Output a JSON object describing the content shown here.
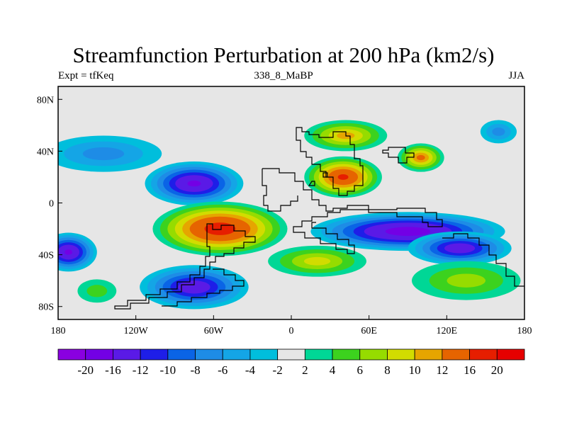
{
  "title": "Streamfunction Perturbation at 200 hPa (km2/s)",
  "subtitle_left": "Expt = tfKeq",
  "subtitle_center": "338_8_MaBP",
  "subtitle_right": "JJA",
  "chart_data": {
    "type": "heatmap",
    "title": "Streamfunction Perturbation at 200 hPa (km2/s)",
    "xlabel": "",
    "ylabel": "",
    "x_range": [
      -180,
      180
    ],
    "y_range": [
      -90,
      90
    ],
    "x_ticks": [
      {
        "value": -180,
        "label": "180"
      },
      {
        "value": -120,
        "label": "120W"
      },
      {
        "value": -60,
        "label": "60W"
      },
      {
        "value": 0,
        "label": "0"
      },
      {
        "value": 60,
        "label": "60E"
      },
      {
        "value": 120,
        "label": "120E"
      },
      {
        "value": 180,
        "label": "180"
      }
    ],
    "y_ticks": [
      {
        "value": 80,
        "label": "80N"
      },
      {
        "value": 40,
        "label": "40N"
      },
      {
        "value": 0,
        "label": "0"
      },
      {
        "value": -40,
        "label": "40S"
      },
      {
        "value": -80,
        "label": "80S"
      }
    ],
    "colorbar_levels": [
      "-20",
      "-16",
      "-12",
      "-10",
      "-8",
      "-6",
      "-4",
      "-2",
      "2",
      "4",
      "6",
      "8",
      "10",
      "12",
      "16",
      "20"
    ],
    "colorbar_colors": [
      "#8a00e0",
      "#7300e5",
      "#5a1ae6",
      "#1e1ee8",
      "#0a64e6",
      "#1e8ce6",
      "#14a5e6",
      "#00bedc",
      "#e6e6e6",
      "#00d796",
      "#3cd21e",
      "#96dc00",
      "#d2dc00",
      "#e6a500",
      "#e66400",
      "#e61e00",
      "#e60000"
    ],
    "background_color": "#e6e6e6",
    "anomalies": [
      {
        "lon": -75,
        "lat": 15,
        "value": -16,
        "rx": 38,
        "ry": 17
      },
      {
        "lon": -55,
        "lat": -20,
        "value": 18,
        "rx": 52,
        "ry": 21
      },
      {
        "lon": -75,
        "lat": -65,
        "value": -14,
        "rx": 42,
        "ry": 17
      },
      {
        "lon": -172,
        "lat": -38,
        "value": -16,
        "rx": 22,
        "ry": 15
      },
      {
        "lon": -145,
        "lat": 38,
        "value": -6,
        "rx": 45,
        "ry": 14
      },
      {
        "lon": -150,
        "lat": -68,
        "value": 4,
        "rx": 15,
        "ry": 9
      },
      {
        "lon": 40,
        "lat": 20,
        "value": 16,
        "rx": 30,
        "ry": 16
      },
      {
        "lon": 42,
        "lat": 52,
        "value": 10,
        "rx": 32,
        "ry": 12
      },
      {
        "lon": 100,
        "lat": 35,
        "value": 12,
        "rx": 18,
        "ry": 11
      },
      {
        "lon": 90,
        "lat": -22,
        "value": -18,
        "rx": 75,
        "ry": 15
      },
      {
        "lon": 130,
        "lat": -35,
        "value": -14,
        "rx": 40,
        "ry": 13
      },
      {
        "lon": 135,
        "lat": -60,
        "value": 6,
        "rx": 42,
        "ry": 15
      },
      {
        "lon": 20,
        "lat": -45,
        "value": 8,
        "rx": 38,
        "ry": 12
      },
      {
        "lon": 160,
        "lat": 55,
        "value": -6,
        "rx": 14,
        "ry": 9
      }
    ]
  }
}
